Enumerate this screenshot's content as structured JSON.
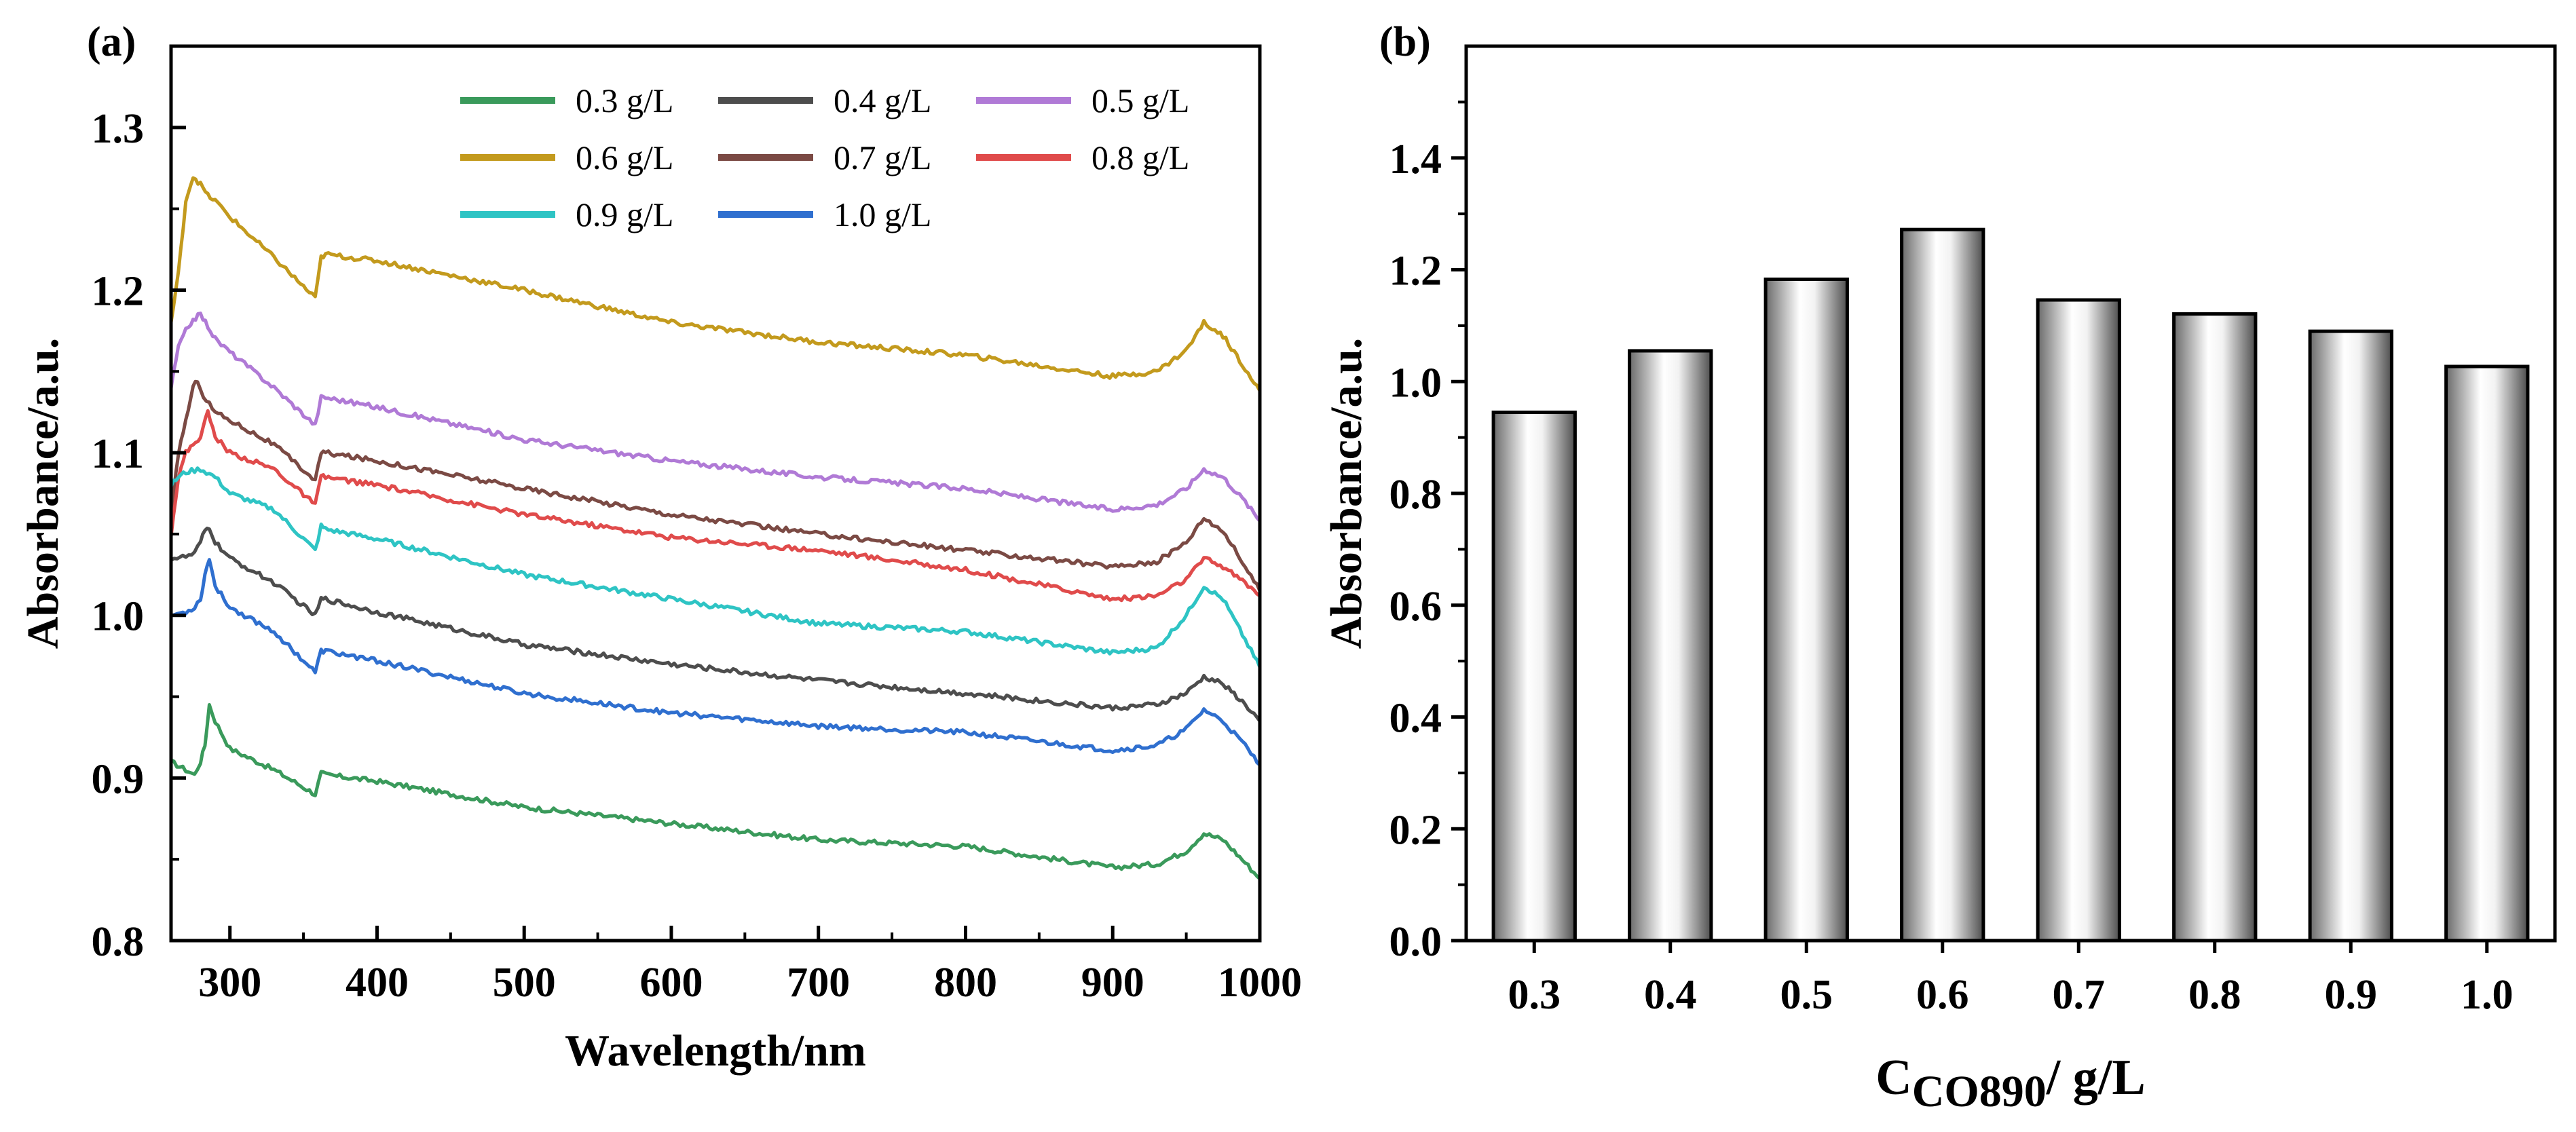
{
  "chart_data": [
    {
      "panel": "(a)",
      "type": "line",
      "xlabel": "Wavelength/nm",
      "ylabel": "Absorbance/a.u.",
      "xlim": [
        260,
        1000
      ],
      "ylim": [
        0.8,
        1.35
      ],
      "xticks": [
        "300",
        "400",
        "500",
        "600",
        "700",
        "800",
        "900",
        "1000"
      ],
      "yticks": [
        "0.8",
        "0.9",
        "1.0",
        "1.1",
        "1.2",
        "1.3"
      ],
      "legend_position": "top-right",
      "series": [
        {
          "name": "0.3 g/L",
          "color": "#3a9a5b",
          "x": [
            260,
            270,
            276,
            280,
            283,
            286,
            290,
            300,
            330,
            358,
            362,
            365,
            400,
            500,
            600,
            700,
            800,
            900,
            930,
            950,
            962,
            975,
            990,
            1000
          ],
          "y": [
            0.91,
            0.905,
            0.902,
            0.91,
            0.92,
            0.945,
            0.935,
            0.918,
            0.905,
            0.89,
            0.903,
            0.902,
            0.898,
            0.882,
            0.872,
            0.862,
            0.858,
            0.845,
            0.847,
            0.855,
            0.866,
            0.862,
            0.848,
            0.838
          ]
        },
        {
          "name": "0.4 g/L",
          "color": "#4d4d4d",
          "x": [
            260,
            270,
            276,
            280,
            283,
            286,
            290,
            300,
            330,
            358,
            362,
            365,
            400,
            500,
            600,
            700,
            800,
            900,
            930,
            950,
            962,
            975,
            990,
            1000
          ],
          "y": [
            1.035,
            1.036,
            1.038,
            1.045,
            1.052,
            1.054,
            1.045,
            1.035,
            1.02,
            1.0,
            1.01,
            1.01,
            1.002,
            0.982,
            0.97,
            0.96,
            0.952,
            0.943,
            0.945,
            0.952,
            0.962,
            0.958,
            0.945,
            0.935
          ]
        },
        {
          "name": "0.5 g/L",
          "color": "#b07ad6",
          "x": [
            260,
            265,
            270,
            275,
            280,
            285,
            290,
            300,
            330,
            358,
            362,
            365,
            400,
            500,
            600,
            700,
            800,
            900,
            930,
            950,
            962,
            975,
            990,
            1000
          ],
          "y": [
            1.14,
            1.165,
            1.175,
            1.182,
            1.185,
            1.178,
            1.17,
            1.162,
            1.14,
            1.117,
            1.134,
            1.134,
            1.128,
            1.108,
            1.095,
            1.085,
            1.078,
            1.065,
            1.068,
            1.078,
            1.09,
            1.085,
            1.07,
            1.058
          ]
        },
        {
          "name": "0.6 g/L",
          "color": "#c39a1d",
          "x": [
            260,
            265,
            270,
            275,
            280,
            285,
            290,
            300,
            330,
            358,
            362,
            365,
            400,
            500,
            600,
            700,
            800,
            900,
            930,
            950,
            962,
            975,
            990,
            1000
          ],
          "y": [
            1.18,
            1.21,
            1.255,
            1.27,
            1.265,
            1.258,
            1.255,
            1.245,
            1.22,
            1.195,
            1.22,
            1.222,
            1.218,
            1.2,
            1.18,
            1.168,
            1.16,
            1.147,
            1.15,
            1.163,
            1.18,
            1.172,
            1.152,
            1.138
          ]
        },
        {
          "name": "0.7 g/L",
          "color": "#7b4a44",
          "x": [
            260,
            265,
            270,
            275,
            278,
            282,
            290,
            300,
            330,
            358,
            362,
            365,
            400,
            500,
            600,
            700,
            800,
            900,
            930,
            950,
            962,
            975,
            990,
            1000
          ],
          "y": [
            1.06,
            1.1,
            1.12,
            1.14,
            1.145,
            1.135,
            1.125,
            1.12,
            1.105,
            1.083,
            1.1,
            1.1,
            1.095,
            1.078,
            1.062,
            1.05,
            1.04,
            1.03,
            1.033,
            1.045,
            1.06,
            1.052,
            1.03,
            1.015
          ]
        },
        {
          "name": "0.8 g/L",
          "color": "#e04b4b",
          "x": [
            260,
            265,
            270,
            275,
            280,
            285,
            290,
            300,
            330,
            358,
            362,
            365,
            400,
            500,
            600,
            700,
            800,
            900,
            930,
            950,
            962,
            975,
            990,
            1000
          ],
          "y": [
            1.05,
            1.085,
            1.1,
            1.105,
            1.11,
            1.125,
            1.11,
            1.1,
            1.09,
            1.068,
            1.085,
            1.085,
            1.08,
            1.062,
            1.048,
            1.04,
            1.028,
            1.01,
            1.012,
            1.022,
            1.035,
            1.03,
            1.02,
            1.012
          ]
        },
        {
          "name": "0.9 g/L",
          "color": "#2ec4c4",
          "x": [
            260,
            265,
            270,
            280,
            290,
            300,
            330,
            358,
            362,
            365,
            400,
            500,
            600,
            700,
            800,
            900,
            930,
            950,
            962,
            975,
            990,
            1000
          ],
          "y": [
            1.08,
            1.085,
            1.088,
            1.09,
            1.085,
            1.075,
            1.065,
            1.04,
            1.055,
            1.053,
            1.047,
            1.025,
            1.01,
            0.995,
            0.99,
            0.977,
            0.98,
            1.0,
            1.018,
            1.01,
            0.985,
            0.968
          ]
        },
        {
          "name": "1.0 g/L",
          "color": "#2f6fcf",
          "x": [
            260,
            270,
            276,
            280,
            283,
            286,
            290,
            300,
            330,
            358,
            362,
            365,
            400,
            500,
            600,
            700,
            800,
            900,
            930,
            950,
            962,
            975,
            990,
            1000
          ],
          "y": [
            1.0,
            1.002,
            1.005,
            1.01,
            1.025,
            1.035,
            1.018,
            1.005,
            0.99,
            0.965,
            0.978,
            0.978,
            0.972,
            0.952,
            0.94,
            0.932,
            0.928,
            0.917,
            0.92,
            0.93,
            0.942,
            0.935,
            0.92,
            0.908
          ]
        }
      ]
    },
    {
      "panel": "(b)",
      "type": "bar",
      "xlabel_main": "C",
      "xlabel_sub": "CO890",
      "xlabel_suffix": "/ g/L",
      "ylabel": "Absorbance/a.u.",
      "ylim": [
        0,
        1.6
      ],
      "yticks": [
        "0.0",
        "0.2",
        "0.4",
        "0.6",
        "0.8",
        "1.0",
        "1.2",
        "1.4"
      ],
      "categories": [
        "0.3",
        "0.4",
        "0.5",
        "0.6",
        "0.7",
        "0.8",
        "0.9",
        "1.0"
      ],
      "values": [
        0.945,
        1.055,
        1.183,
        1.272,
        1.146,
        1.121,
        1.09,
        1.027
      ]
    }
  ]
}
